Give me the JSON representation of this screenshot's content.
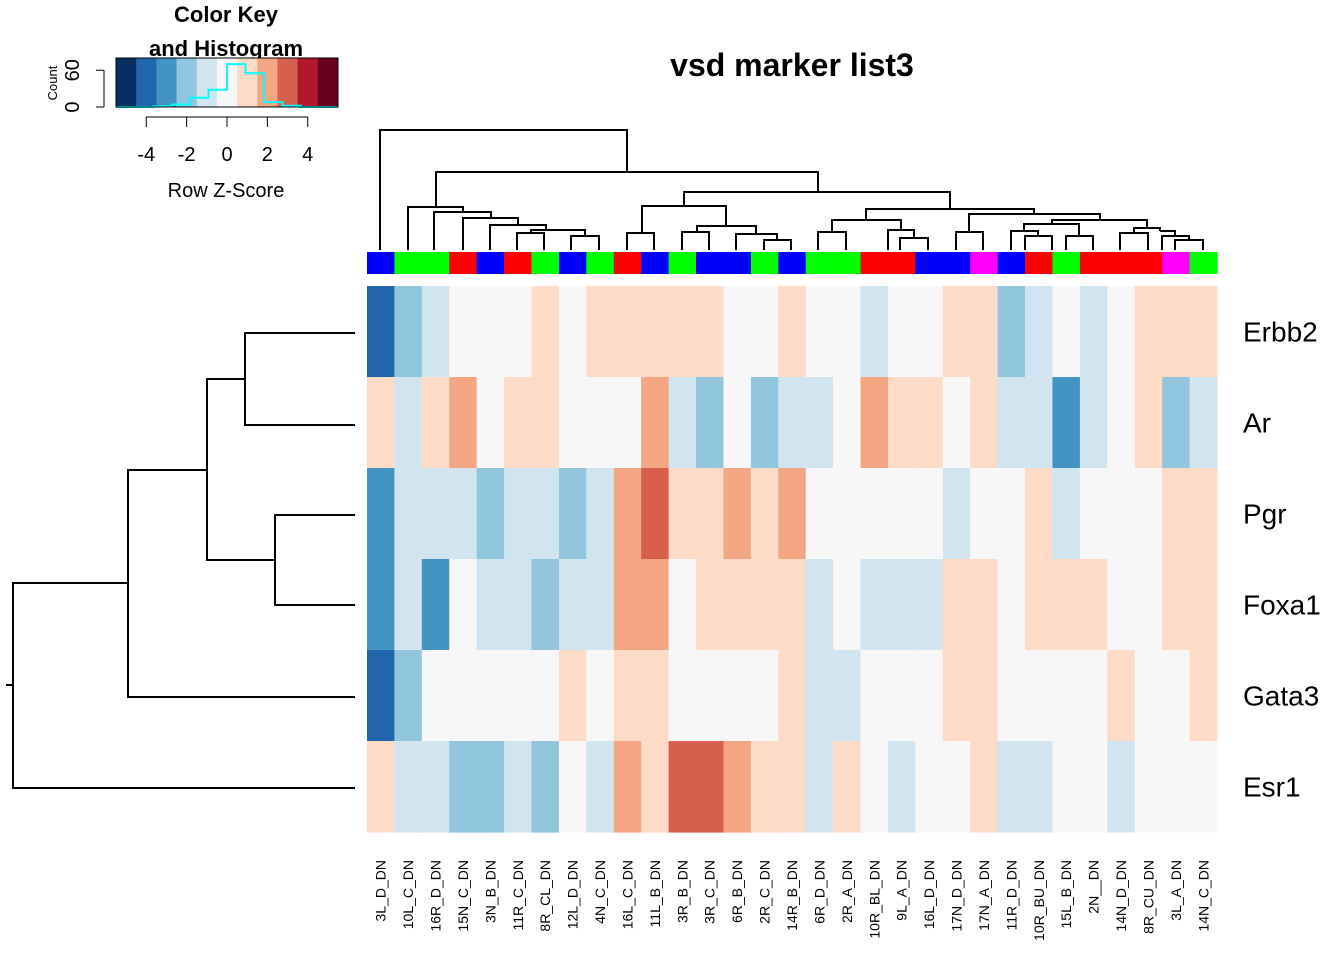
{
  "chart_data": {
    "type": "heatmap",
    "title": "vsd marker list3",
    "rows": [
      "Erbb2",
      "Ar",
      "Pgr",
      "Foxa1",
      "Gata3",
      "Esr1"
    ],
    "columns": [
      "3L_D_DN",
      "10L_C_DN",
      "16R_D_DN",
      "15N_C_DN",
      "3N_B_DN",
      "11R_C_DN",
      "8R_CL_DN",
      "12L_D_DN",
      "4N_C_DN",
      "16L_C_DN",
      "11L_B_DN",
      "3R_B_DN",
      "3R_C_DN",
      "6R_B_DN",
      "2R_C_DN",
      "14R_B_DN",
      "6R_D_DN",
      "2R_A_DN",
      "10R_BL_DN",
      "9L_A_DN",
      "16L_D_DN",
      "17N_D_DN",
      "17N_A_DN",
      "11R_D_DN",
      "10R_BU_DN",
      "15L_B_DN",
      "2N__DN",
      "14N_D_DN",
      "8R_CU_DN",
      "3L_A_DN",
      "14N_C_DN"
    ],
    "column_group_colors": [
      "#0000ff",
      "#00ff00",
      "#00ff00",
      "#ff0000",
      "#0000ff",
      "#ff0000",
      "#00ff00",
      "#0000ff",
      "#00ff00",
      "#ff0000",
      "#0000ff",
      "#00ff00",
      "#0000ff",
      "#0000ff",
      "#00ff00",
      "#0000ff",
      "#00ff00",
      "#00ff00",
      "#ff0000",
      "#ff0000",
      "#0000ff",
      "#0000ff",
      "#ff00ff",
      "#0000ff",
      "#ff0000",
      "#00ff00",
      "#ff0000",
      "#ff0000",
      "#ff0000",
      "#ff00ff",
      "#00ff00"
    ],
    "values": [
      [
        -4,
        -2,
        -1,
        0,
        0,
        0,
        1,
        0,
        1,
        1,
        1,
        1,
        1,
        0,
        0,
        1,
        0,
        0,
        -1,
        0,
        0,
        1,
        1,
        -2,
        -1,
        0,
        -1,
        0,
        1,
        1,
        1
      ],
      [
        1,
        -1,
        1,
        2,
        0,
        1,
        1,
        0,
        0,
        0,
        2,
        -1,
        -2,
        0,
        -2,
        -1,
        -1,
        0,
        2,
        1,
        1,
        0,
        1,
        -1,
        -1,
        -3,
        -1,
        0,
        1,
        -2,
        -1
      ],
      [
        -3,
        -1,
        -1,
        -1,
        -2,
        -1,
        -1,
        -2,
        -1,
        2,
        3,
        1,
        1,
        2,
        1,
        2,
        0,
        0,
        0,
        0,
        0,
        -1,
        0,
        0,
        1,
        -1,
        0,
        0,
        0,
        1,
        1
      ],
      [
        -3,
        -1,
        -3,
        0,
        -1,
        -1,
        -2,
        -1,
        -1,
        2,
        2,
        0,
        1,
        1,
        1,
        1,
        -1,
        0,
        -1,
        -1,
        -1,
        1,
        1,
        0,
        1,
        1,
        1,
        0,
        0,
        1,
        1
      ],
      [
        -4,
        -2,
        0,
        0,
        0,
        0,
        0,
        1,
        0,
        1,
        1,
        0,
        0,
        0,
        0,
        1,
        -1,
        -1,
        0,
        0,
        0,
        1,
        1,
        0,
        0,
        0,
        0,
        1,
        0,
        0,
        1
      ],
      [
        1,
        -1,
        -1,
        -2,
        -2,
        -1,
        -2,
        0,
        -1,
        2,
        1,
        3,
        3,
        2,
        1,
        1,
        -1,
        1,
        0,
        -1,
        0,
        0,
        1,
        -1,
        -1,
        0,
        0,
        -1,
        0,
        0,
        0
      ]
    ],
    "palette": [
      "#053061",
      "#2166ac",
      "#4393c3",
      "#92c5de",
      "#d1e5f0",
      "#f7f7f7",
      "#fddbc7",
      "#f4a582",
      "#d6604d",
      "#b2182b",
      "#67001f"
    ],
    "key": {
      "title_line1": "Color Key",
      "title_line2": "and Histogram",
      "xlabel": "Row Z-Score",
      "ylabel": "Count",
      "x_ticks": [
        "-4",
        "-2",
        "0",
        "2",
        "4"
      ],
      "y_ticks": [
        "0",
        "60"
      ],
      "histogram_counts": [
        0,
        0,
        1,
        4,
        15,
        28,
        70,
        55,
        8,
        2,
        0,
        0
      ],
      "histogram_color": "#00ffff"
    }
  }
}
